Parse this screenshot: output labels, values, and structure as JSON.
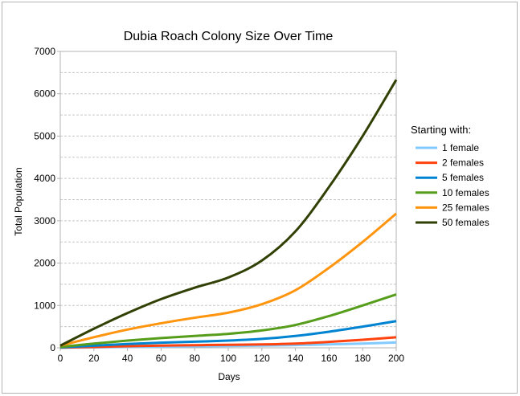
{
  "chart_data": {
    "type": "line",
    "title": "Dubia Roach Colony Size Over Time",
    "xlabel": "Days",
    "ylabel": "Total Population",
    "xlim": [
      0,
      200
    ],
    "ylim": [
      0,
      7000
    ],
    "x_ticks": [
      0,
      20,
      40,
      60,
      80,
      100,
      120,
      140,
      160,
      180,
      200
    ],
    "y_ticks": [
      0,
      1000,
      2000,
      3000,
      4000,
      5000,
      6000,
      7000
    ],
    "grid": "horizontal dashed",
    "legend_title": "Starting with:",
    "legend_position": "right",
    "x": [
      0,
      20,
      40,
      60,
      80,
      100,
      120,
      140,
      160,
      180,
      200
    ],
    "series": [
      {
        "name": "1 female",
        "color": "#83caff",
        "values": [
          2,
          10,
          20,
          28,
          35,
          42,
          52,
          65,
          80,
          100,
          125
        ]
      },
      {
        "name": "2 females",
        "color": "#ff420e",
        "values": [
          4,
          20,
          38,
          52,
          62,
          72,
          80,
          100,
          140,
          190,
          250
        ]
      },
      {
        "name": "5 females",
        "color": "#0084d1",
        "values": [
          10,
          50,
          90,
          120,
          145,
          170,
          210,
          280,
          380,
          500,
          630
        ]
      },
      {
        "name": "10 females",
        "color": "#579d1c",
        "values": [
          20,
          100,
          170,
          230,
          280,
          330,
          410,
          540,
          750,
          1000,
          1260
        ]
      },
      {
        "name": "25 females",
        "color": "#ff950e",
        "values": [
          50,
          250,
          430,
          580,
          710,
          830,
          1030,
          1360,
          1890,
          2500,
          3170
        ]
      },
      {
        "name": "50 females",
        "color": "#314004",
        "values": [
          50,
          450,
          820,
          1150,
          1420,
          1660,
          2060,
          2750,
          3800,
          5000,
          6330
        ]
      }
    ]
  }
}
